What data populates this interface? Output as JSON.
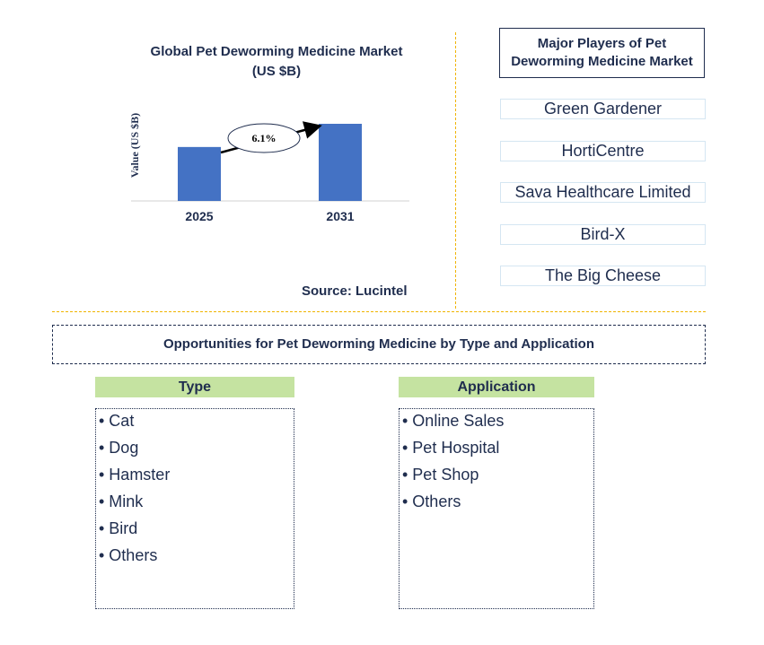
{
  "chart": {
    "title": "Global Pet Deworming Medicine Market (US $B)",
    "ylabel": "Value (US $B)",
    "source": "Source: Lucintel"
  },
  "chart_data": {
    "type": "bar",
    "title": "Global Pet Deworming Medicine Market (US $B)",
    "xlabel": "",
    "ylabel": "Value (US $B)",
    "categories": [
      "2025",
      "2031"
    ],
    "values": [
      1.0,
      1.43
    ],
    "annotation": "6.1%",
    "bar_color": "#4472c4",
    "grid": false
  },
  "players": {
    "title": "Major Players of Pet Deworming Medicine Market",
    "items": [
      "Green Gardener",
      "HortiCentre",
      "Sava Healthcare Limited",
      "Bird-X",
      "The Big Cheese"
    ]
  },
  "opportunities": {
    "title": "Opportunities for Pet Deworming Medicine by Type and Application",
    "type": {
      "header": "Type",
      "items": [
        "• Cat",
        "• Dog",
        "• Hamster",
        "• Mink",
        "• Bird",
        "• Others"
      ]
    },
    "application": {
      "header": "Application",
      "items": [
        "• Online Sales",
        "• Pet Hospital",
        "• Pet Shop",
        "• Others"
      ]
    }
  },
  "colors": {
    "text": "#1f2d4e",
    "bar": "#4472c4",
    "divider": "#f0b400",
    "header_fill": "#c5e3a1"
  }
}
